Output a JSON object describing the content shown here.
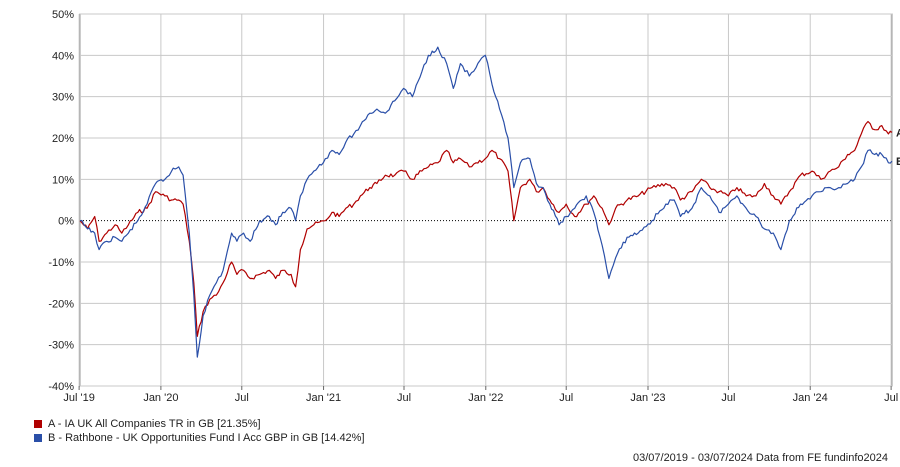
{
  "chart_data": {
    "type": "line",
    "xlabel": "",
    "ylabel": "",
    "ylim": [
      -40,
      50
    ],
    "y_unit": "%",
    "y_ticks": [
      -40,
      -30,
      -20,
      -10,
      0,
      10,
      20,
      30,
      40,
      50
    ],
    "y_tick_labels": [
      "-40%",
      "-30%",
      "-20%",
      "-10%",
      "0%",
      "10%",
      "20%",
      "30%",
      "40%",
      "50%"
    ],
    "x_range": [
      "2019-07-03",
      "2024-07-03"
    ],
    "x_ticks": [
      "2019-07",
      "2020-01",
      "2020-07",
      "2021-01",
      "2021-07",
      "2022-01",
      "2022-07",
      "2023-01",
      "2023-07",
      "2024-01",
      "2024-07"
    ],
    "x_tick_labels": [
      "Jul '19",
      "Jan '20",
      "Jul",
      "Jan '21",
      "Jul",
      "Jan '22",
      "Jul",
      "Jan '23",
      "Jul",
      "Jan '24",
      "Jul"
    ],
    "grid": true,
    "zero_line": "dotted",
    "series": [
      {
        "name": "A - IA UK All Companies TR in GB [21.35%]",
        "end_label": "A",
        "color": "#b00000",
        "points": [
          [
            "2019-07-03",
            0
          ],
          [
            "2019-07-20",
            -2
          ],
          [
            "2019-08-05",
            1
          ],
          [
            "2019-08-15",
            -5
          ],
          [
            "2019-09-01",
            -3
          ],
          [
            "2019-09-20",
            -1
          ],
          [
            "2019-10-05",
            -3
          ],
          [
            "2019-10-20",
            -1
          ],
          [
            "2019-11-10",
            2
          ],
          [
            "2019-12-01",
            3
          ],
          [
            "2019-12-20",
            7
          ],
          [
            "2020-01-10",
            6
          ],
          [
            "2020-01-25",
            5
          ],
          [
            "2020-02-10",
            5
          ],
          [
            "2020-02-20",
            4
          ],
          [
            "2020-03-05",
            -5
          ],
          [
            "2020-03-15",
            -15
          ],
          [
            "2020-03-23",
            -28
          ],
          [
            "2020-04-05",
            -22
          ],
          [
            "2020-04-20",
            -19
          ],
          [
            "2020-05-05",
            -18
          ],
          [
            "2020-05-20",
            -15
          ],
          [
            "2020-06-08",
            -10
          ],
          [
            "2020-06-20",
            -13
          ],
          [
            "2020-07-05",
            -12
          ],
          [
            "2020-07-20",
            -14
          ],
          [
            "2020-08-10",
            -13
          ],
          [
            "2020-09-01",
            -12
          ],
          [
            "2020-09-15",
            -14
          ],
          [
            "2020-10-01",
            -12
          ],
          [
            "2020-10-20",
            -13
          ],
          [
            "2020-10-30",
            -16
          ],
          [
            "2020-11-10",
            -7
          ],
          [
            "2020-11-25",
            -2
          ],
          [
            "2020-12-10",
            -1
          ],
          [
            "2021-01-05",
            0
          ],
          [
            "2021-01-20",
            2
          ],
          [
            "2021-02-05",
            1
          ],
          [
            "2021-02-20",
            3
          ],
          [
            "2021-03-10",
            4
          ],
          [
            "2021-03-25",
            6
          ],
          [
            "2021-04-15",
            8
          ],
          [
            "2021-05-01",
            9
          ],
          [
            "2021-05-20",
            11
          ],
          [
            "2021-06-10",
            11
          ],
          [
            "2021-06-30",
            12
          ],
          [
            "2021-07-20",
            10
          ],
          [
            "2021-08-10",
            12
          ],
          [
            "2021-08-25",
            13
          ],
          [
            "2021-09-15",
            14
          ],
          [
            "2021-10-05",
            17
          ],
          [
            "2021-10-20",
            14
          ],
          [
            "2021-11-05",
            15
          ],
          [
            "2021-11-25",
            13
          ],
          [
            "2021-12-10",
            14
          ],
          [
            "2021-12-31",
            15
          ],
          [
            "2022-01-15",
            17
          ],
          [
            "2022-02-01",
            15
          ],
          [
            "2022-02-20",
            12
          ],
          [
            "2022-03-05",
            0
          ],
          [
            "2022-03-20",
            8
          ],
          [
            "2022-04-10",
            10
          ],
          [
            "2022-04-25",
            7
          ],
          [
            "2022-05-10",
            8
          ],
          [
            "2022-05-25",
            5
          ],
          [
            "2022-06-15",
            2
          ],
          [
            "2022-07-01",
            4
          ],
          [
            "2022-07-20",
            1
          ],
          [
            "2022-08-15",
            4
          ],
          [
            "2022-09-01",
            6
          ],
          [
            "2022-09-20",
            3
          ],
          [
            "2022-10-05",
            -1
          ],
          [
            "2022-10-20",
            3
          ],
          [
            "2022-11-15",
            5
          ],
          [
            "2022-12-10",
            6
          ],
          [
            "2023-01-10",
            8
          ],
          [
            "2023-02-10",
            9
          ],
          [
            "2023-03-01",
            8
          ],
          [
            "2023-03-15",
            5
          ],
          [
            "2023-04-10",
            7
          ],
          [
            "2023-05-01",
            10
          ],
          [
            "2023-05-20",
            8
          ],
          [
            "2023-06-10",
            7
          ],
          [
            "2023-07-01",
            6
          ],
          [
            "2023-07-20",
            8
          ],
          [
            "2023-08-10",
            6
          ],
          [
            "2023-09-01",
            6
          ],
          [
            "2023-09-20",
            9
          ],
          [
            "2023-10-10",
            6
          ],
          [
            "2023-10-27",
            4
          ],
          [
            "2023-11-15",
            7
          ],
          [
            "2023-12-10",
            11
          ],
          [
            "2024-01-05",
            12
          ],
          [
            "2024-01-25",
            10
          ],
          [
            "2024-02-15",
            12
          ],
          [
            "2024-03-05",
            13
          ],
          [
            "2024-03-25",
            16
          ],
          [
            "2024-04-10",
            17
          ],
          [
            "2024-04-25",
            21
          ],
          [
            "2024-05-10",
            24
          ],
          [
            "2024-05-25",
            22
          ],
          [
            "2024-06-10",
            23
          ],
          [
            "2024-06-25",
            21
          ],
          [
            "2024-07-03",
            21.35
          ]
        ]
      },
      {
        "name": "B - Rathbone - UK Opportunities Fund I Acc GBP in GB [14.42%]",
        "end_label": "B",
        "color": "#2a4fa8",
        "points": [
          [
            "2019-07-03",
            0
          ],
          [
            "2019-07-20",
            -2
          ],
          [
            "2019-08-05",
            -3
          ],
          [
            "2019-08-15",
            -7
          ],
          [
            "2019-09-01",
            -5
          ],
          [
            "2019-09-20",
            -4
          ],
          [
            "2019-10-05",
            -5
          ],
          [
            "2019-10-20",
            -3
          ],
          [
            "2019-11-10",
            0
          ],
          [
            "2019-12-01",
            4
          ],
          [
            "2019-12-20",
            9
          ],
          [
            "2020-01-10",
            10
          ],
          [
            "2020-01-25",
            12
          ],
          [
            "2020-02-10",
            13
          ],
          [
            "2020-02-20",
            11
          ],
          [
            "2020-03-05",
            -3
          ],
          [
            "2020-03-15",
            -18
          ],
          [
            "2020-03-23",
            -33
          ],
          [
            "2020-04-05",
            -23
          ],
          [
            "2020-04-20",
            -18
          ],
          [
            "2020-05-05",
            -15
          ],
          [
            "2020-05-20",
            -12
          ],
          [
            "2020-06-08",
            -3
          ],
          [
            "2020-06-20",
            -5
          ],
          [
            "2020-07-05",
            -3
          ],
          [
            "2020-07-20",
            -5
          ],
          [
            "2020-08-10",
            0
          ],
          [
            "2020-09-01",
            1
          ],
          [
            "2020-09-15",
            -1
          ],
          [
            "2020-10-01",
            2
          ],
          [
            "2020-10-20",
            3
          ],
          [
            "2020-10-30",
            0
          ],
          [
            "2020-11-10",
            6
          ],
          [
            "2020-11-25",
            10
          ],
          [
            "2020-12-10",
            12
          ],
          [
            "2021-01-05",
            15
          ],
          [
            "2021-01-20",
            17
          ],
          [
            "2021-02-05",
            16
          ],
          [
            "2021-02-20",
            19
          ],
          [
            "2021-03-10",
            21
          ],
          [
            "2021-03-25",
            23
          ],
          [
            "2021-04-15",
            26
          ],
          [
            "2021-05-01",
            27
          ],
          [
            "2021-05-20",
            26
          ],
          [
            "2021-06-10",
            29
          ],
          [
            "2021-06-30",
            32
          ],
          [
            "2021-07-20",
            30
          ],
          [
            "2021-08-10",
            36
          ],
          [
            "2021-08-25",
            40
          ],
          [
            "2021-09-15",
            42
          ],
          [
            "2021-10-05",
            38
          ],
          [
            "2021-10-20",
            32
          ],
          [
            "2021-11-05",
            38
          ],
          [
            "2021-11-25",
            35
          ],
          [
            "2021-12-10",
            37
          ],
          [
            "2021-12-31",
            40
          ],
          [
            "2022-01-15",
            33
          ],
          [
            "2022-02-01",
            27
          ],
          [
            "2022-02-20",
            20
          ],
          [
            "2022-03-05",
            8
          ],
          [
            "2022-03-20",
            14
          ],
          [
            "2022-04-10",
            15
          ],
          [
            "2022-04-25",
            9
          ],
          [
            "2022-05-10",
            8
          ],
          [
            "2022-05-25",
            4
          ],
          [
            "2022-06-15",
            -1
          ],
          [
            "2022-07-01",
            1
          ],
          [
            "2022-07-20",
            3
          ],
          [
            "2022-08-15",
            6
          ],
          [
            "2022-09-01",
            2
          ],
          [
            "2022-09-20",
            -6
          ],
          [
            "2022-10-05",
            -14
          ],
          [
            "2022-10-20",
            -9
          ],
          [
            "2022-11-15",
            -4
          ],
          [
            "2022-12-10",
            -3
          ],
          [
            "2023-01-10",
            0
          ],
          [
            "2023-02-10",
            4
          ],
          [
            "2023-03-01",
            5
          ],
          [
            "2023-03-15",
            1
          ],
          [
            "2023-04-10",
            3
          ],
          [
            "2023-05-01",
            8
          ],
          [
            "2023-05-20",
            6
          ],
          [
            "2023-06-10",
            2
          ],
          [
            "2023-07-01",
            4
          ],
          [
            "2023-07-20",
            6
          ],
          [
            "2023-08-10",
            3
          ],
          [
            "2023-09-01",
            1
          ],
          [
            "2023-09-20",
            -2
          ],
          [
            "2023-10-10",
            -3
          ],
          [
            "2023-10-27",
            -7
          ],
          [
            "2023-11-15",
            0
          ],
          [
            "2023-12-10",
            4
          ],
          [
            "2024-01-05",
            6
          ],
          [
            "2024-01-25",
            7
          ],
          [
            "2024-02-15",
            8
          ],
          [
            "2024-03-05",
            8
          ],
          [
            "2024-03-25",
            9
          ],
          [
            "2024-04-10",
            10
          ],
          [
            "2024-04-25",
            13
          ],
          [
            "2024-05-10",
            17
          ],
          [
            "2024-05-25",
            16
          ],
          [
            "2024-06-10",
            16
          ],
          [
            "2024-06-25",
            14
          ],
          [
            "2024-07-03",
            14.42
          ]
        ]
      }
    ],
    "footer": "03/07/2019 - 03/07/2024 Data from FE fundinfo2024"
  }
}
